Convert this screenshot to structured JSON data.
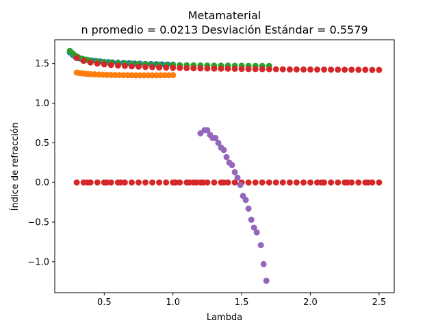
{
  "chart_data": {
    "type": "scatter",
    "title": "Metamaterial",
    "subtitle": "n promedio = 0.0213  Desviación Estándar = 0.5579",
    "xlabel": "Lambda",
    "ylabel": "Índice de refracción",
    "xlim": [
      0.14,
      2.61
    ],
    "ylim": [
      -1.39,
      1.8
    ],
    "xticks": [
      0.5,
      1.0,
      1.5,
      2.0,
      2.5
    ],
    "xtick_labels": [
      "0.5",
      "1.0",
      "1.5",
      "2.0",
      "2.5"
    ],
    "yticks": [
      -1.0,
      -0.5,
      0.0,
      0.5,
      1.0,
      1.5
    ],
    "ytick_labels": [
      "−1.0",
      "−0.5",
      "0.0",
      "0.5",
      "1.0",
      "1.5"
    ],
    "grid": false,
    "legend": "none",
    "series": [
      {
        "color": "#1f77b4",
        "points": [
          [
            0.25,
            1.64
          ],
          [
            0.27,
            1.61
          ],
          [
            0.29,
            1.585
          ],
          [
            0.31,
            1.57
          ],
          [
            0.33,
            1.56
          ],
          [
            0.35,
            1.553
          ],
          [
            0.38,
            1.545
          ],
          [
            0.41,
            1.538
          ],
          [
            0.44,
            1.532
          ],
          [
            0.47,
            1.527
          ],
          [
            0.5,
            1.522
          ],
          [
            0.53,
            1.518
          ],
          [
            0.56,
            1.515
          ],
          [
            0.6,
            1.511
          ],
          [
            0.64,
            1.507
          ],
          [
            0.68,
            1.504
          ],
          [
            0.72,
            1.501
          ],
          [
            0.76,
            1.498
          ],
          [
            0.8,
            1.496
          ],
          [
            0.84,
            1.494
          ],
          [
            0.88,
            1.492
          ],
          [
            0.92,
            1.49
          ],
          [
            0.96,
            1.488
          ],
          [
            1.0,
            1.486
          ]
        ]
      },
      {
        "color": "#ff7f0e",
        "points": [
          [
            0.3,
            1.385
          ],
          [
            0.32,
            1.38
          ],
          [
            0.34,
            1.376
          ],
          [
            0.36,
            1.372
          ],
          [
            0.38,
            1.369
          ],
          [
            0.4,
            1.366
          ],
          [
            0.43,
            1.363
          ],
          [
            0.46,
            1.361
          ],
          [
            0.49,
            1.359
          ],
          [
            0.52,
            1.357
          ],
          [
            0.55,
            1.356
          ],
          [
            0.58,
            1.355
          ],
          [
            0.61,
            1.354
          ],
          [
            0.64,
            1.353
          ],
          [
            0.67,
            1.352
          ],
          [
            0.7,
            1.352
          ],
          [
            0.73,
            1.351
          ],
          [
            0.76,
            1.351
          ],
          [
            0.79,
            1.351
          ],
          [
            0.82,
            1.351
          ],
          [
            0.85,
            1.351
          ],
          [
            0.88,
            1.351
          ],
          [
            0.91,
            1.352
          ],
          [
            0.94,
            1.352
          ],
          [
            0.97,
            1.353
          ],
          [
            1.0,
            1.354
          ]
        ]
      },
      {
        "color": "#2ca02c",
        "points": [
          [
            0.25,
            1.66
          ],
          [
            0.27,
            1.63
          ],
          [
            0.29,
            1.6
          ],
          [
            0.31,
            1.58
          ],
          [
            0.34,
            1.56
          ],
          [
            0.37,
            1.548
          ],
          [
            0.4,
            1.538
          ],
          [
            0.45,
            1.528
          ],
          [
            0.5,
            1.52
          ],
          [
            0.55,
            1.513
          ],
          [
            0.6,
            1.507
          ],
          [
            0.65,
            1.502
          ],
          [
            0.7,
            1.498
          ],
          [
            0.75,
            1.494
          ],
          [
            0.8,
            1.491
          ],
          [
            0.85,
            1.488
          ],
          [
            0.9,
            1.485
          ],
          [
            0.95,
            1.483
          ],
          [
            1.0,
            1.481
          ],
          [
            1.05,
            1.479
          ],
          [
            1.1,
            1.478
          ],
          [
            1.15,
            1.477
          ],
          [
            1.2,
            1.476
          ],
          [
            1.25,
            1.475
          ],
          [
            1.3,
            1.474
          ],
          [
            1.35,
            1.473
          ],
          [
            1.4,
            1.473
          ],
          [
            1.45,
            1.472
          ],
          [
            1.5,
            1.472
          ],
          [
            1.55,
            1.471
          ],
          [
            1.6,
            1.471
          ],
          [
            1.65,
            1.47
          ],
          [
            1.7,
            1.47
          ]
        ]
      },
      {
        "color": "#d62728",
        "points": [
          [
            0.3,
            1.57
          ],
          [
            0.35,
            1.535
          ],
          [
            0.4,
            1.513
          ],
          [
            0.45,
            1.5
          ],
          [
            0.5,
            1.49
          ],
          [
            0.55,
            1.482
          ],
          [
            0.6,
            1.475
          ],
          [
            0.65,
            1.47
          ],
          [
            0.7,
            1.465
          ],
          [
            0.75,
            1.461
          ],
          [
            0.8,
            1.457
          ],
          [
            0.85,
            1.454
          ],
          [
            0.9,
            1.451
          ],
          [
            0.95,
            1.448
          ],
          [
            1.0,
            1.446
          ],
          [
            1.05,
            1.444
          ],
          [
            1.1,
            1.442
          ],
          [
            1.15,
            1.44
          ],
          [
            1.2,
            1.439
          ],
          [
            1.25,
            1.437
          ],
          [
            1.3,
            1.436
          ],
          [
            1.35,
            1.435
          ],
          [
            1.4,
            1.434
          ],
          [
            1.45,
            1.433
          ],
          [
            1.5,
            1.432
          ],
          [
            1.55,
            1.431
          ],
          [
            1.6,
            1.43
          ],
          [
            1.65,
            1.429
          ],
          [
            1.7,
            1.428
          ],
          [
            1.75,
            1.428
          ],
          [
            1.8,
            1.427
          ],
          [
            1.85,
            1.426
          ],
          [
            1.9,
            1.426
          ],
          [
            1.95,
            1.425
          ],
          [
            2.0,
            1.425
          ],
          [
            2.05,
            1.424
          ],
          [
            2.1,
            1.424
          ],
          [
            2.15,
            1.423
          ],
          [
            2.2,
            1.423
          ],
          [
            2.25,
            1.422
          ],
          [
            2.3,
            1.422
          ],
          [
            2.35,
            1.421
          ],
          [
            2.4,
            1.421
          ],
          [
            2.45,
            1.42
          ],
          [
            2.5,
            1.42
          ],
          [
            0.3,
            0.0
          ],
          [
            0.35,
            0.0
          ],
          [
            0.38,
            0.0
          ],
          [
            0.4,
            0.0
          ],
          [
            0.45,
            0.0
          ],
          [
            0.5,
            0.0
          ],
          [
            0.52,
            0.0
          ],
          [
            0.55,
            0.0
          ],
          [
            0.6,
            0.0
          ],
          [
            0.62,
            0.0
          ],
          [
            0.65,
            0.0
          ],
          [
            0.7,
            0.0
          ],
          [
            0.75,
            0.0
          ],
          [
            0.8,
            0.0
          ],
          [
            0.85,
            0.0
          ],
          [
            0.9,
            0.0
          ],
          [
            0.95,
            0.0
          ],
          [
            1.0,
            0.0
          ],
          [
            1.02,
            0.0
          ],
          [
            1.05,
            0.0
          ],
          [
            1.1,
            0.0
          ],
          [
            1.12,
            0.0
          ],
          [
            1.15,
            0.0
          ],
          [
            1.17,
            0.0
          ],
          [
            1.2,
            0.0
          ],
          [
            1.22,
            0.0
          ],
          [
            1.25,
            0.0
          ],
          [
            1.3,
            0.0
          ],
          [
            1.35,
            0.0
          ],
          [
            1.37,
            0.0
          ],
          [
            1.4,
            0.0
          ],
          [
            1.45,
            0.0
          ],
          [
            1.5,
            0.0
          ],
          [
            1.55,
            0.0
          ],
          [
            1.6,
            0.0
          ],
          [
            1.65,
            0.0
          ],
          [
            1.7,
            0.0
          ],
          [
            1.75,
            0.0
          ],
          [
            1.8,
            0.0
          ],
          [
            1.85,
            0.0
          ],
          [
            1.9,
            0.0
          ],
          [
            1.95,
            0.0
          ],
          [
            2.0,
            0.0
          ],
          [
            2.05,
            0.0
          ],
          [
            2.08,
            0.0
          ],
          [
            2.1,
            0.0
          ],
          [
            2.15,
            0.0
          ],
          [
            2.2,
            0.0
          ],
          [
            2.25,
            0.0
          ],
          [
            2.27,
            0.0
          ],
          [
            2.3,
            0.0
          ],
          [
            2.35,
            0.0
          ],
          [
            2.4,
            0.0
          ],
          [
            2.42,
            0.0
          ],
          [
            2.45,
            0.0
          ],
          [
            2.5,
            0.0
          ]
        ]
      },
      {
        "color": "#9467bd",
        "points": [
          [
            1.2,
            0.62
          ],
          [
            1.23,
            0.66
          ],
          [
            1.25,
            0.66
          ],
          [
            1.27,
            0.6
          ],
          [
            1.29,
            0.56
          ],
          [
            1.31,
            0.56
          ],
          [
            1.33,
            0.5
          ],
          [
            1.35,
            0.44
          ],
          [
            1.37,
            0.41
          ],
          [
            1.39,
            0.32
          ],
          [
            1.41,
            0.25
          ],
          [
            1.43,
            0.22
          ],
          [
            1.45,
            0.13
          ],
          [
            1.47,
            0.06
          ],
          [
            1.49,
            -0.03
          ],
          [
            1.51,
            -0.17
          ],
          [
            1.53,
            -0.22
          ],
          [
            1.55,
            -0.33
          ],
          [
            1.57,
            -0.47
          ],
          [
            1.59,
            -0.57
          ],
          [
            1.61,
            -0.63
          ],
          [
            1.64,
            -0.79
          ],
          [
            1.66,
            -1.03
          ],
          [
            1.68,
            -1.24
          ]
        ]
      }
    ]
  }
}
